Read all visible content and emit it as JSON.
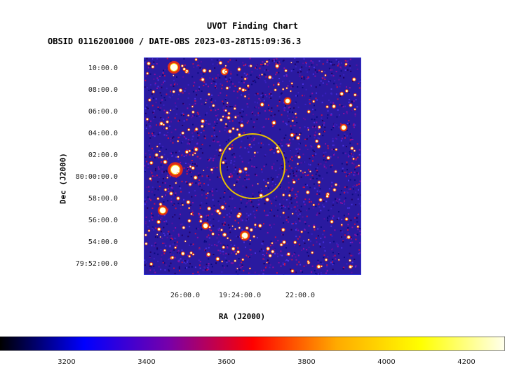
{
  "chart_data": {
    "type": "heatmap",
    "title": "UVOT Finding Chart",
    "subtitle": "OBSID 01162001000 / DATE-OBS 2023-03-28T15:09:36.3",
    "xlabel": "RA (J2000)",
    "ylabel": "Dec (J2000)",
    "x_ticks": [
      "26:00.0",
      "19:24:00.0",
      "22:00.0"
    ],
    "y_ticks": [
      "10:00.0",
      "08:00.0",
      "06:00.0",
      "04:00.0",
      "02:00.0",
      "80:00:00.0",
      "58:00.0",
      "56:00.0",
      "54:00.0",
      "79:52:00.0"
    ],
    "colorbar": {
      "ticks": [
        "3200",
        "3400",
        "3600",
        "3800",
        "4000",
        "4200"
      ],
      "colors": [
        "#000000",
        "#0000ff",
        "#7700aa",
        "#ff0000",
        "#ffaa00",
        "#ffff00",
        "#ffffee"
      ]
    },
    "region_color": "#e8c000",
    "background_color": "#2a1aa0"
  }
}
